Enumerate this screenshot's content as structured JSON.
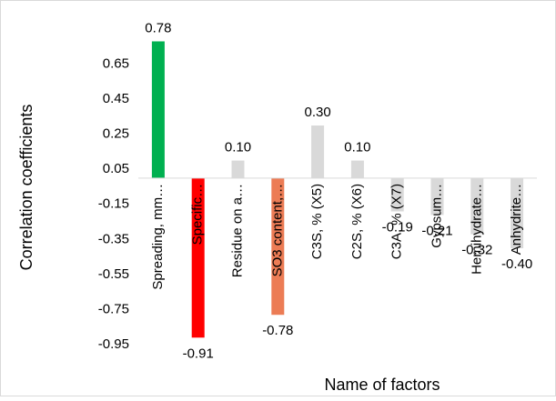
{
  "chart_data": {
    "type": "bar",
    "x_label": "Name of factors",
    "y_label": "Correlation coefficients",
    "categories": [
      "Spreading, mm…",
      "Specific…",
      "Residue on a…",
      "SO3 content,…",
      "C3S, % (X5)",
      "C2S, % (X6)",
      "C3A, % (X7)",
      "Gypsum…",
      "Hemihydrate…",
      "Anhydrite…"
    ],
    "values": [
      0.78,
      -0.91,
      0.1,
      -0.78,
      0.3,
      0.1,
      -0.19,
      -0.21,
      -0.32,
      -0.4
    ],
    "value_labels": [
      "0.78",
      "-0.91",
      "0.10",
      "-0.78",
      "0.30",
      "0.10",
      "-0.19",
      "-0.21",
      "-0.32",
      "-0.40"
    ],
    "colors": [
      "#00b050",
      "#ff0000",
      "#d9d9d9",
      "#ec7c55",
      "#d9d9d9",
      "#d9d9d9",
      "#d9d9d9",
      "#d9d9d9",
      "#d9d9d9",
      "#d9d9d9"
    ],
    "ylim": [
      -0.95,
      0.85
    ],
    "yticks": [
      -0.95,
      -0.75,
      -0.55,
      -0.35,
      -0.15,
      0.05,
      0.25,
      0.45,
      0.65
    ]
  }
}
